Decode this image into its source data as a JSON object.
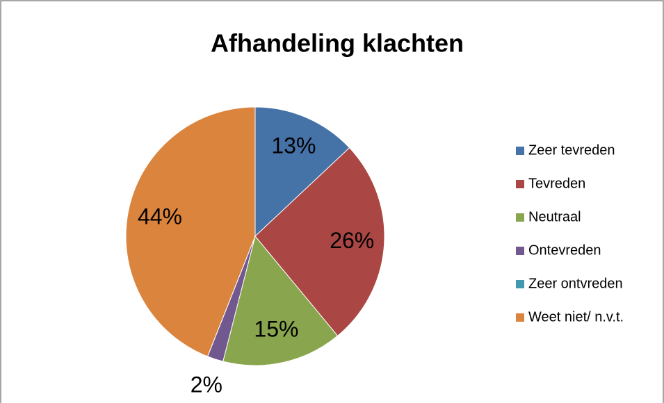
{
  "chart_data": {
    "type": "pie",
    "title": "Afhandeling klachten",
    "categories": [
      "Zeer tevreden",
      "Tevreden",
      "Neutraal",
      "Ontevreden",
      "Zeer ontvreden",
      "Weet niet/ n.v.t."
    ],
    "values": [
      13,
      26,
      15,
      2,
      0,
      44
    ],
    "value_labels": [
      "13%",
      "26%",
      "15%",
      "2%",
      null,
      "44%"
    ],
    "colors": [
      "#4572a7",
      "#aa4643",
      "#89a54e",
      "#71588f",
      "#4198af",
      "#db843d"
    ],
    "legend": "right"
  }
}
